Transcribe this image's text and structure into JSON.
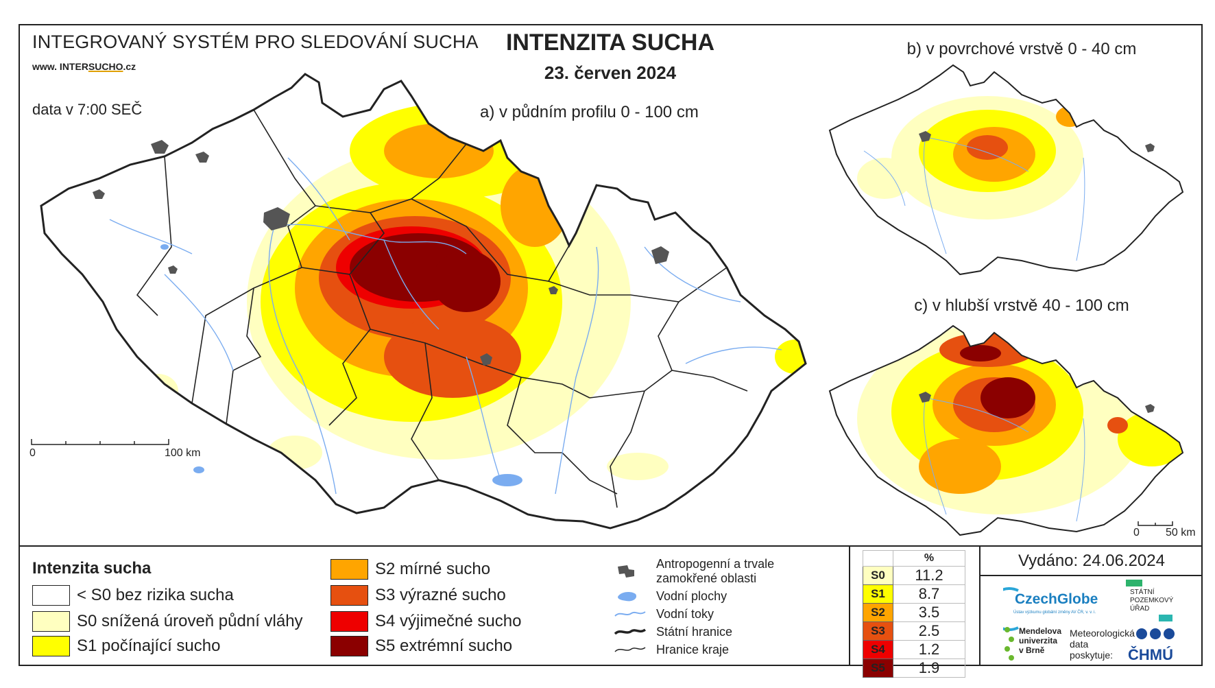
{
  "header": {
    "system_name": "INTEGROVANÝ SYSTÉM PRO SLEDOVÁNÍ SUCHA",
    "url_prefix": "www. INTER",
    "url_mid": "SUCHO",
    "url_suffix": ".cz",
    "data_time": "data v 7:00 SEČ",
    "title": "INTENZITA SUCHA",
    "date": "23. červen 2024"
  },
  "maps": {
    "a_title": "a) v půdním profilu 0 - 100 cm",
    "b_title": "b) v povrchové vrstvě 0 - 40 cm",
    "c_title": "c) v hlubší vrstvě 40 - 100 cm",
    "scale_a_start": "0",
    "scale_a_end": "100 km",
    "scale_c_start": "0",
    "scale_c_end": "50 km"
  },
  "legend": {
    "title": "Intenzita sucha",
    "items": [
      {
        "label": "< S0 bez rizika sucha",
        "color": "#ffffff"
      },
      {
        "label": "S0 snížená úroveň půdní vláhy",
        "color": "#ffffc0"
      },
      {
        "label": "S1 počínající sucho",
        "color": "#ffff00"
      },
      {
        "label": "S2 mírné sucho",
        "color": "#ffa500"
      },
      {
        "label": "S3 výrazné sucho",
        "color": "#e65010"
      },
      {
        "label": "S4 výjimečné sucho",
        "color": "#ee0000"
      },
      {
        "label": "S5 extrémní sucho",
        "color": "#8b0000"
      }
    ]
  },
  "symbols": {
    "anthropogenic_line1": "Antropogenní a trvale",
    "anthropogenic_line2": "zamokřené oblasti",
    "water_bodies": "Vodní plochy",
    "water_streams": "Vodní toky",
    "state_border": "Státní hranice",
    "region_border": "Hranice kraje"
  },
  "stats": {
    "header": "%",
    "rows": [
      {
        "cls": "S0",
        "pct": "11.2",
        "color": "#ffffc0"
      },
      {
        "cls": "S1",
        "pct": "8.7",
        "color": "#ffff00"
      },
      {
        "cls": "S2",
        "pct": "3.5",
        "color": "#ffa500"
      },
      {
        "cls": "S3",
        "pct": "2.5",
        "color": "#e65010"
      },
      {
        "cls": "S4",
        "pct": "1.2",
        "color": "#ee0000"
      },
      {
        "cls": "S5",
        "pct": "1.9",
        "color": "#8b0000"
      }
    ]
  },
  "footer": {
    "issued": "Vydáno: 24.06.2024",
    "czechglobe": "CzechGlobe",
    "czechglobe_sub": "Ústav výzkumu globální změny AV ČR, v. v. i.",
    "spu_line1": "STÁTNÍ",
    "spu_line2": "POZEMKOVÝ",
    "spu_line3": "ÚŘAD",
    "mendel_line1": "Mendelova",
    "mendel_line2": "univerzita",
    "mendel_line3": "v Brně",
    "meteo_line1": "Meteorologická",
    "meteo_line2": "data",
    "meteo_line3": "poskytuje:",
    "chmu": "ČHMÚ"
  }
}
